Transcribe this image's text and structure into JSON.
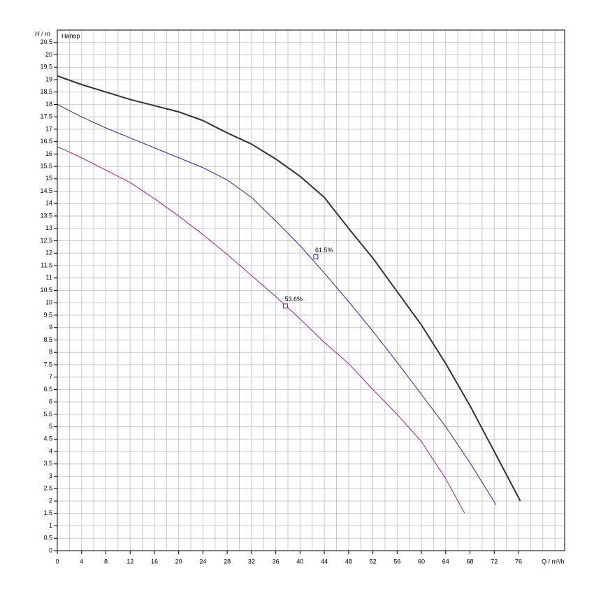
{
  "chart_data": {
    "type": "line",
    "title": "Напор",
    "y_label": "H / m",
    "x_label": "Q / m³/h",
    "xlim": [
      0,
      83.6
    ],
    "ylim": [
      0,
      21
    ],
    "xticks": [
      0,
      4,
      8,
      12,
      16,
      20,
      24,
      28,
      32,
      36,
      40,
      44,
      48,
      52,
      56,
      60,
      64,
      68,
      72,
      76
    ],
    "xminorticks": [
      2,
      6,
      10,
      14,
      18,
      22,
      26,
      30,
      34,
      38,
      42,
      46,
      50,
      54,
      58,
      62,
      66,
      70,
      74,
      78,
      80,
      82
    ],
    "yticks": [
      0,
      0.5,
      1,
      1.5,
      2,
      2.5,
      3,
      3.5,
      4,
      4.5,
      5,
      5.5,
      6,
      6.5,
      7,
      7.5,
      8,
      8.5,
      9,
      9.5,
      10,
      10.5,
      11,
      11.5,
      12,
      12.5,
      13,
      13.5,
      14,
      14.5,
      15,
      15.5,
      16,
      16.5,
      17,
      17.5,
      18,
      18.5,
      19,
      19.5,
      20,
      20.5
    ],
    "grid": true,
    "series": [
      {
        "color": "#333333",
        "width": 2,
        "x": [
          0,
          4,
          8,
          12,
          16,
          20,
          24,
          28,
          32,
          36,
          40,
          44,
          48,
          52,
          56,
          60,
          64,
          68,
          72,
          76.3
        ],
        "values": [
          19.15,
          18.8,
          18.5,
          18.2,
          17.95,
          17.7,
          17.35,
          16.85,
          16.4,
          15.8,
          15.1,
          14.25,
          13,
          11.8,
          10.45,
          9.1,
          7.55,
          5.85,
          4.0,
          2.0
        ]
      },
      {
        "color": "#23239a",
        "width": 1,
        "x": [
          0,
          4,
          8,
          12,
          16,
          20,
          24,
          28,
          32,
          36,
          40,
          44,
          48,
          52,
          56,
          60,
          64,
          68,
          72.3
        ],
        "values": [
          18.0,
          17.5,
          17.05,
          16.65,
          16.25,
          15.85,
          15.45,
          14.95,
          14.25,
          13.3,
          12.3,
          11.2,
          10.05,
          8.85,
          7.6,
          6.3,
          5.0,
          3.55,
          1.85
        ]
      },
      {
        "color": "#9a1f8a",
        "width": 1,
        "x": [
          0,
          4,
          8,
          12,
          16,
          20,
          24,
          28,
          32,
          36,
          40,
          44,
          48,
          52,
          56,
          60,
          64,
          67.1
        ],
        "values": [
          16.3,
          15.85,
          15.35,
          14.85,
          14.2,
          13.5,
          12.75,
          11.95,
          11.1,
          10.25,
          9.35,
          8.4,
          7.55,
          6.5,
          5.5,
          4.4,
          2.9,
          1.52
        ]
      }
    ],
    "annotations": [
      {
        "x": 42.6,
        "y": 11.85,
        "label": "61.5%",
        "color": "#23239a"
      },
      {
        "x": 37.6,
        "y": 9.87,
        "label": "53.6%",
        "color": "#9a1f8a"
      }
    ]
  }
}
